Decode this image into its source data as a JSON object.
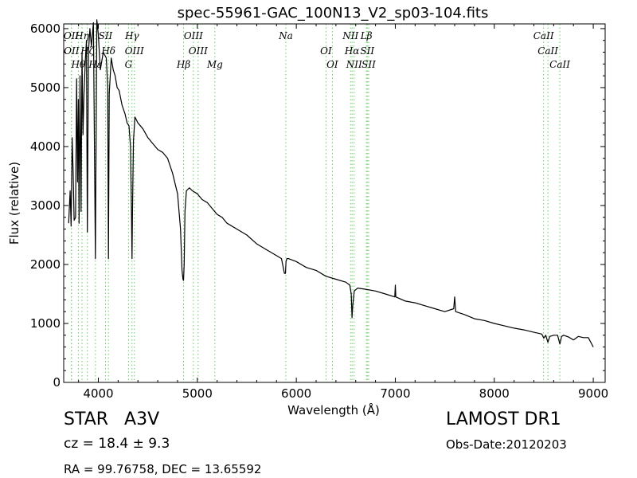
{
  "chart_data": {
    "type": "line",
    "title": "spec-55961-GAC_100N13_V2_sp03-104.fits",
    "xlabel": "Wavelength (Å)",
    "ylabel": "Flux (relative)",
    "xlim": [
      3650,
      9120
    ],
    "ylim": [
      0,
      6080
    ],
    "xticks": [
      4000,
      5000,
      6000,
      7000,
      8000,
      9000
    ],
    "yticks": [
      0,
      1000,
      2000,
      3000,
      4000,
      5000,
      6000
    ],
    "grid": false,
    "series": [
      {
        "color": "#000000",
        "x": [
          3700,
          3715,
          3725,
          3735,
          3745,
          3755,
          3770,
          3780,
          3790,
          3798,
          3805,
          3815,
          3825,
          3835,
          3845,
          3855,
          3870,
          3880,
          3889,
          3900,
          3915,
          3930,
          3950,
          3970,
          3985,
          4000,
          4020,
          4050,
          4080,
          4095,
          4102,
          4110,
          4130,
          4150,
          4170,
          4190,
          4210,
          4240,
          4270,
          4290,
          4310,
          4325,
          4335,
          4340,
          4345,
          4355,
          4370,
          4400,
          4450,
          4500,
          4550,
          4600,
          4650,
          4700,
          4750,
          4800,
          4830,
          4845,
          4855,
          4861,
          4867,
          4875,
          4890,
          4920,
          4950,
          5000,
          5050,
          5100,
          5150,
          5200,
          5250,
          5300,
          5400,
          5500,
          5600,
          5700,
          5800,
          5850,
          5880,
          5890,
          5896,
          5905,
          5920,
          6000,
          6100,
          6200,
          6300,
          6400,
          6500,
          6540,
          6555,
          6563,
          6570,
          6585,
          6620,
          6700,
          6800,
          6900,
          6995,
          7000,
          7005,
          7100,
          7200,
          7300,
          7400,
          7500,
          7590,
          7600,
          7610,
          7700,
          7800,
          7900,
          8000,
          8100,
          8200,
          8300,
          8400,
          8480,
          8500,
          8520,
          8542,
          8560,
          8600,
          8640,
          8662,
          8680,
          8700,
          8750,
          8800,
          8850,
          8900,
          8950,
          9000
        ],
        "values": [
          2700,
          3250,
          2650,
          4150,
          3600,
          2750,
          2800,
          5150,
          3400,
          4800,
          2700,
          5200,
          2900,
          5600,
          4200,
          4900,
          5500,
          5800,
          2550,
          5600,
          6000,
          5700,
          6100,
          2100,
          6150,
          5900,
          5300,
          5600,
          5500,
          5000,
          2100,
          4900,
          5500,
          5300,
          5200,
          5000,
          4950,
          4700,
          4550,
          4400,
          4350,
          4000,
          2800,
          2100,
          2900,
          4100,
          4500,
          4400,
          4300,
          4150,
          4050,
          3950,
          3900,
          3800,
          3550,
          3200,
          2600,
          1900,
          1750,
          1730,
          2000,
          2900,
          3250,
          3300,
          3250,
          3200,
          3100,
          3050,
          2950,
          2850,
          2800,
          2700,
          2600,
          2500,
          2350,
          2250,
          2150,
          2100,
          1850,
          1850,
          2050,
          2100,
          2100,
          2050,
          1950,
          1900,
          1800,
          1750,
          1700,
          1650,
          1500,
          1100,
          1300,
          1550,
          1600,
          1580,
          1550,
          1500,
          1450,
          1650,
          1450,
          1380,
          1350,
          1300,
          1250,
          1200,
          1250,
          1450,
          1200,
          1150,
          1080,
          1050,
          1000,
          960,
          920,
          890,
          850,
          820,
          750,
          800,
          680,
          780,
          800,
          800,
          650,
          780,
          800,
          770,
          720,
          780,
          760,
          760,
          600
        ]
      }
    ],
    "line_markers": [
      {
        "label": "OII",
        "x": 3727
      },
      {
        "label": "OII",
        "x": 3729
      },
      {
        "label": "Hθ",
        "x": 3798
      },
      {
        "label": "Hη",
        "x": 3835
      },
      {
        "label": "Hζ",
        "x": 3889
      },
      {
        "label": "Hε",
        "x": 3970
      },
      {
        "label": "SII",
        "x": 4072
      },
      {
        "label": "Hδ",
        "x": 4102
      },
      {
        "label": "G",
        "x": 4305
      },
      {
        "label": "Hγ",
        "x": 4340
      },
      {
        "label": "OIII",
        "x": 4364
      },
      {
        "label": "Hβ",
        "x": 4861
      },
      {
        "label": "OIII",
        "x": 4960
      },
      {
        "label": "OIII",
        "x": 5008
      },
      {
        "label": "Mg",
        "x": 5177
      },
      {
        "label": "Na",
        "x": 5894
      },
      {
        "label": "OI",
        "x": 6300
      },
      {
        "label": "OI",
        "x": 6364
      },
      {
        "label": "NII",
        "x": 6548
      },
      {
        "label": "Hα",
        "x": 6563
      },
      {
        "label": "NII",
        "x": 6584
      },
      {
        "label": "Lβ",
        "x": 6708
      },
      {
        "label": "SII",
        "x": 6717
      },
      {
        "label": "SII",
        "x": 6731
      },
      {
        "label": "CaII",
        "x": 8498
      },
      {
        "label": "CaII",
        "x": 8542
      },
      {
        "label": "CaII",
        "x": 8662
      }
    ],
    "marker_color": "#66cc66"
  },
  "info": {
    "object_class": "STAR",
    "subclass": "A3V",
    "cz_label": "cz = 18.4",
    "cz_error": "± 9.3",
    "radec": "RA = 99.76758, DEC = 13.65592",
    "survey": "LAMOST DR1",
    "obs_date": "Obs-Date:20120203"
  }
}
